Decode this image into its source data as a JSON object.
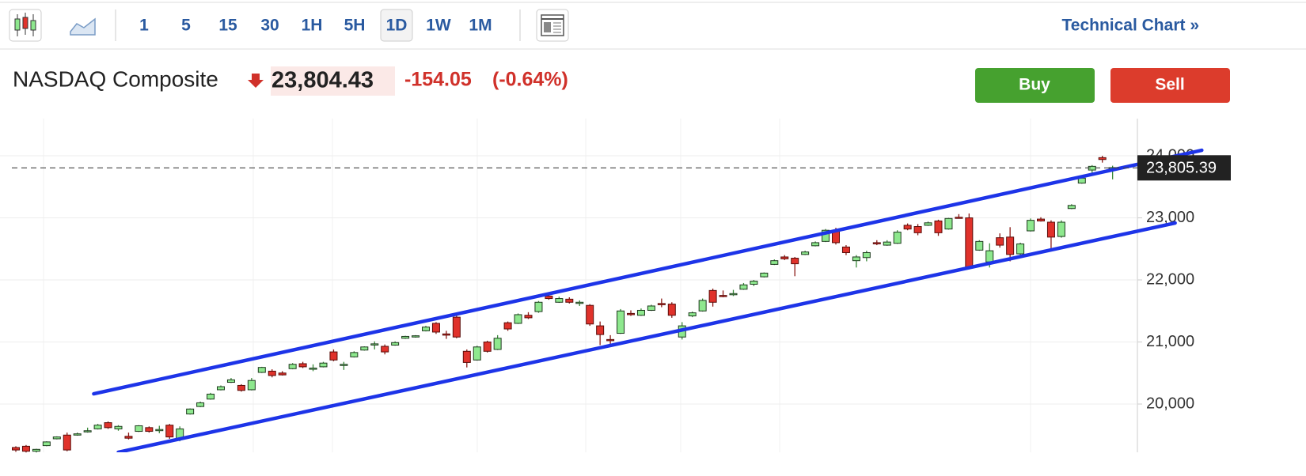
{
  "toolbar": {
    "intervals": [
      "1",
      "5",
      "15",
      "30",
      "1H",
      "5H",
      "1D",
      "1W",
      "1M"
    ],
    "selected": "1D",
    "link": "Technical Chart »"
  },
  "quote": {
    "name": "NASDAQ Composite",
    "price": "23,804.43",
    "change": "-154.05",
    "change_percent": "(-0.64%)"
  },
  "buttons": {
    "buy": "Buy",
    "sell": "Sell"
  },
  "chart_data": {
    "type": "candlestick",
    "up_color": "#8ee88e",
    "down_color": "#e0322b",
    "grid": true,
    "ylim": [
      19223,
      24599
    ],
    "yticks": [
      {
        "value": 20000,
        "label": "20,000"
      },
      {
        "value": 21000,
        "label": "21,000"
      },
      {
        "value": 22000,
        "label": "22,000"
      },
      {
        "value": 23000,
        "label": "23,000"
      },
      {
        "value": 24000,
        "label": "24,000"
      }
    ],
    "last_price": {
      "value": 23805.39,
      "label": "23,805.39"
    },
    "open": [
      19300,
      19320,
      19240,
      19330,
      19440,
      19500,
      19500,
      19560,
      19600,
      19700,
      19600,
      19480,
      19560,
      19620,
      19580,
      19660,
      19440,
      19840,
      19960,
      20080,
      20230,
      20350,
      20300,
      20230,
      20510,
      20530,
      20500,
      20570,
      20650,
      20560,
      20600,
      20840,
      20630,
      20760,
      20870,
      20960,
      20930,
      20950,
      21060,
      21080,
      21180,
      21300,
      21130,
      21400,
      20850,
      20710,
      21000,
      20880,
      21310,
      21300,
      21430,
      21490,
      21740,
      21640,
      21690,
      21630,
      21590,
      21260,
      21040,
      21140,
      21460,
      21430,
      21510,
      21620,
      21610,
      21080,
      21420,
      21500,
      21830,
      21750,
      21770,
      21850,
      21930,
      22050,
      22250,
      22370,
      22350,
      22410,
      22550,
      22620,
      22800,
      22530,
      22310,
      22360,
      22600,
      22560,
      22590,
      22880,
      22860,
      22880,
      22950,
      22820,
      23010,
      23000,
      22480,
      22290,
      22680,
      22690,
      22420,
      22790,
      22980,
      22930,
      22700,
      23150,
      23560,
      23770,
      23970,
      23800
    ],
    "high": [
      19320,
      19340,
      19280,
      19400,
      19480,
      19540,
      19540,
      19620,
      19680,
      19720,
      19660,
      19540,
      19660,
      19640,
      19650,
      19680,
      19640,
      19930,
      20040,
      20180,
      20300,
      20420,
      20320,
      20420,
      20600,
      20560,
      20530,
      20660,
      20680,
      20640,
      20680,
      20880,
      20680,
      20850,
      20930,
      21010,
      20960,
      21010,
      21100,
      21110,
      21260,
      21320,
      21180,
      21440,
      20880,
      20940,
      21020,
      21110,
      21330,
      21460,
      21480,
      21660,
      21790,
      21730,
      21720,
      21670,
      21610,
      21330,
      21110,
      21530,
      21510,
      21540,
      21600,
      21700,
      21640,
      21320,
      21490,
      21700,
      21860,
      21830,
      21840,
      21950,
      22000,
      22120,
      22330,
      22400,
      22370,
      22470,
      22620,
      22820,
      22840,
      22560,
      22400,
      22470,
      22640,
      22640,
      22800,
      22910,
      22900,
      22940,
      22970,
      23000,
      23060,
      23070,
      22640,
      22590,
      22750,
      22850,
      22600,
      22990,
      23010,
      22960,
      22960,
      23220,
      23660,
      23850,
      24000,
      23840
    ],
    "low": [
      19230,
      19220,
      19220,
      19320,
      19430,
      19240,
      19490,
      19540,
      19590,
      19600,
      19570,
      19430,
      19550,
      19540,
      19530,
      19440,
      19400,
      19830,
      19950,
      20070,
      20220,
      20340,
      20200,
      20220,
      20500,
      20430,
      20460,
      20560,
      20580,
      20530,
      20590,
      20690,
      20550,
      20750,
      20860,
      20880,
      20800,
      20940,
      21050,
      21070,
      21170,
      21130,
      21050,
      21060,
      20590,
      20700,
      20830,
      20870,
      21180,
      21290,
      21370,
      21470,
      21680,
      21630,
      21620,
      21580,
      21260,
      20950,
      20960,
      21130,
      21420,
      21420,
      21500,
      21560,
      21390,
      21040,
      21400,
      21490,
      21570,
      21720,
      21740,
      21840,
      21900,
      22040,
      22240,
      22320,
      22060,
      22400,
      22540,
      22610,
      22570,
      22400,
      22200,
      22300,
      22560,
      22550,
      22580,
      22800,
      22720,
      22870,
      22710,
      22810,
      22990,
      22170,
      22470,
      22200,
      22520,
      22300,
      22380,
      22780,
      22940,
      22510,
      22680,
      23140,
      23550,
      23720,
      23890,
      23620
    ],
    "close": [
      19260,
      19240,
      19270,
      19390,
      19470,
      19260,
      19520,
      19570,
      19660,
      19620,
      19640,
      19450,
      19650,
      19560,
      19590,
      19470,
      19600,
      19920,
      20020,
      20160,
      20280,
      20390,
      20220,
      20380,
      20590,
      20460,
      20470,
      20640,
      20600,
      20580,
      20660,
      20710,
      20640,
      20830,
      20920,
      20970,
      20840,
      20990,
      21090,
      21100,
      21240,
      21160,
      21110,
      21080,
      20670,
      20920,
      20850,
      21060,
      21210,
      21440,
      21390,
      21640,
      21700,
      21700,
      21640,
      21640,
      21290,
      21120,
      21030,
      21500,
      21440,
      21510,
      21580,
      21600,
      21430,
      21260,
      21470,
      21670,
      21640,
      21740,
      21780,
      21920,
      21980,
      22110,
      22310,
      22340,
      22260,
      22450,
      22600,
      22800,
      22600,
      22440,
      22370,
      22440,
      22590,
      22610,
      22770,
      22820,
      22760,
      22920,
      22760,
      22990,
      23000,
      22190,
      22620,
      22470,
      22560,
      22410,
      22580,
      22960,
      22950,
      22690,
      22930,
      23200,
      23640,
      23830,
      23940,
      23810
    ],
    "trendlines": [
      {
        "color": "#1d34e8",
        "x": [
          7.6,
          115.7
        ],
        "values": [
          20165,
          24089
        ]
      },
      {
        "color": "#1d34e8",
        "x": [
          10.0,
          113.1
        ],
        "values": [
          19223,
          22917
        ]
      }
    ]
  }
}
